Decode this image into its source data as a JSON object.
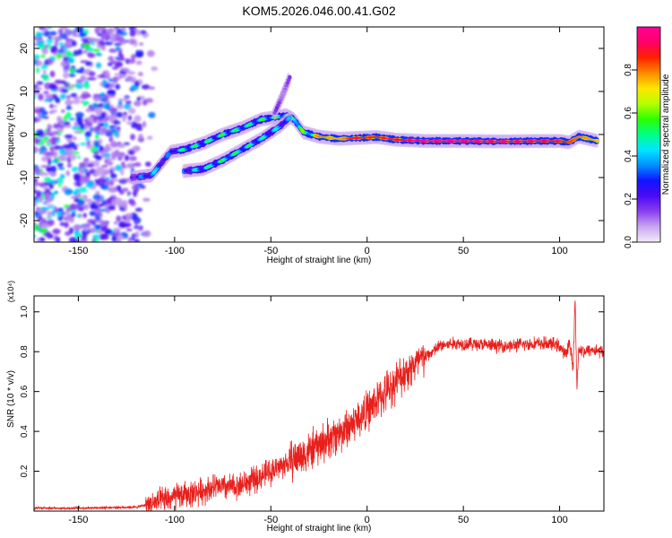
{
  "title": "KOM5.2026.046.00.41.G02",
  "chart_data": [
    {
      "type": "heatmap",
      "name": "spectrogram",
      "xlabel": "Height of straight line (km)",
      "ylabel": "Frequency (Hz)",
      "xlim": [
        -173,
        123
      ],
      "ylim": [
        -25,
        25
      ],
      "xticks": [
        -150,
        -100,
        -50,
        0,
        50,
        100
      ],
      "yticks": [
        -20,
        -10,
        0,
        10,
        20
      ],
      "grid": false,
      "colorbar": {
        "label": "Normalized spectral amplitude",
        "range": [
          0,
          1
        ],
        "ticks": [
          "0.0",
          "0.2",
          "0.4",
          "0.6",
          "0.8"
        ],
        "colors": [
          "#f4ecfb",
          "#c9a6ef",
          "#8a3ff0",
          "#4b0bf2",
          "#1313ff",
          "#0090ff",
          "#00e6ff",
          "#00ff88",
          "#2cff00",
          "#b5ff00",
          "#ffe600",
          "#ff8a00",
          "#ff2200",
          "#ff0066",
          "#ff0099"
        ]
      },
      "tracks": [
        {
          "name": "main-track",
          "x": [
            -122,
            -112,
            -102,
            -95,
            -85,
            -75,
            -65,
            -55,
            -48,
            -42,
            -38,
            -33,
            -25,
            -15,
            -5,
            5,
            15,
            30,
            50,
            70,
            90,
            100,
            105,
            110,
            120
          ],
          "y": [
            -10,
            -9.5,
            -4,
            -3.5,
            -2,
            0,
            1.5,
            3.5,
            4,
            4.5,
            3.5,
            0.5,
            -0.5,
            -1,
            -0.8,
            -0.6,
            -1.2,
            -1.5,
            -1.5,
            -1.6,
            -1.5,
            -1.5,
            -1.8,
            -0.5,
            -1.5
          ],
          "amp": [
            0.3,
            0.45,
            0.35,
            0.55,
            0.5,
            0.55,
            0.5,
            0.55,
            0.6,
            0.55,
            0.7,
            0.6,
            0.75,
            0.7,
            0.85,
            0.8,
            0.85,
            0.95,
            1.0,
            0.95,
            0.9,
            0.85,
            0.8,
            0.75,
            0.7
          ]
        },
        {
          "name": "lower-track",
          "x": [
            -95,
            -85,
            -75,
            -65,
            -55,
            -45,
            -40
          ],
          "y": [
            -8.5,
            -8,
            -6,
            -3.5,
            -1,
            2,
            4
          ],
          "amp": [
            0.4,
            0.5,
            0.55,
            0.55,
            0.5,
            0.45,
            0.4
          ]
        },
        {
          "name": "upper-streak",
          "x": [
            -48,
            -44,
            -40
          ],
          "y": [
            5,
            9,
            13.5
          ],
          "amp": [
            0.15,
            0.2,
            0.15
          ]
        }
      ],
      "noise_region": {
        "x": [
          -173,
          -115
        ],
        "y": [
          -25,
          25
        ]
      }
    },
    {
      "type": "line",
      "name": "snr",
      "xlabel": "Height of straight line (km)",
      "ylabel": "SNR (10 * v/v)",
      "scale_label": "(x10⁴)",
      "xlim": [
        -173,
        123
      ],
      "ylim": [
        0,
        1.08
      ],
      "xticks": [
        -150,
        -100,
        -50,
        0,
        50,
        100
      ],
      "yticks": [
        0.2,
        0.4,
        0.6,
        0.8,
        1.0
      ],
      "color": "#e8201c",
      "x": [
        -173,
        -150,
        -120,
        -110,
        -100,
        -90,
        -80,
        -70,
        -60,
        -50,
        -40,
        -30,
        -20,
        -10,
        0,
        10,
        20,
        30,
        38,
        45,
        55,
        65,
        75,
        85,
        95,
        100,
        103,
        105,
        107,
        108,
        109,
        110,
        113,
        117,
        123
      ],
      "y": [
        0.015,
        0.015,
        0.02,
        0.04,
        0.07,
        0.09,
        0.12,
        0.12,
        0.15,
        0.2,
        0.25,
        0.3,
        0.36,
        0.42,
        0.5,
        0.6,
        0.7,
        0.77,
        0.83,
        0.84,
        0.84,
        0.83,
        0.83,
        0.84,
        0.84,
        0.83,
        0.78,
        0.85,
        0.72,
        1.07,
        0.63,
        0.82,
        0.8,
        0.81,
        0.8
      ]
    }
  ]
}
